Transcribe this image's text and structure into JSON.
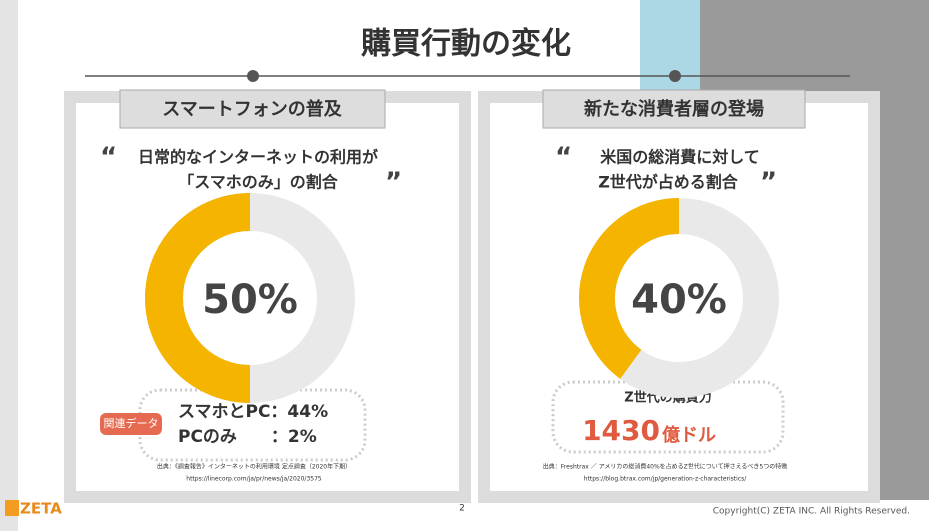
{
  "title": "購買行動の変化",
  "page_number": "2",
  "logo": "ZETA",
  "copyright": "Copyright(C) ZETA INC. All Rights Reserved.",
  "quote_open": "“",
  "quote_close": "”",
  "left": {
    "header": "スマートフォンの普及",
    "quote_lines": [
      "日常的なインターネットの利用が",
      "「スマホのみ」の割合"
    ],
    "tag": "関連データ",
    "details": [
      "スマホとPC：44%",
      "PCのみ　　：2%"
    ],
    "source": [
      "出典：《調査報告》インターネットの利用環境 定点調査（2020年下期）",
      "https://linecorp.com/ja/pr/news/ja/2020/3575"
    ]
  },
  "right": {
    "header": "新たな消費者層の登場",
    "quote_lines": [
      "米国の総消費に対して",
      "Z世代が占める割合"
    ],
    "detail_title": "Z世代の購買力",
    "detail_number": "1430",
    "detail_unit": "億ドル",
    "source": [
      "出典：Freshtrax ／ アメリカの総消費40%を占めるZ世代について押さえるべき5つの特徴",
      "https://blog.btrax.com/jp/generation-z-characteristics/"
    ]
  },
  "chart_data": [
    {
      "type": "donut",
      "values": [
        50
      ],
      "value_labels": [
        "50%"
      ],
      "color": "#f5b400",
      "track_color": "#e9e9e9"
    },
    {
      "type": "donut",
      "values": [
        40
      ],
      "value_labels": [
        "40%"
      ],
      "color": "#f5b400",
      "track_color": "#e9e9e9"
    }
  ]
}
